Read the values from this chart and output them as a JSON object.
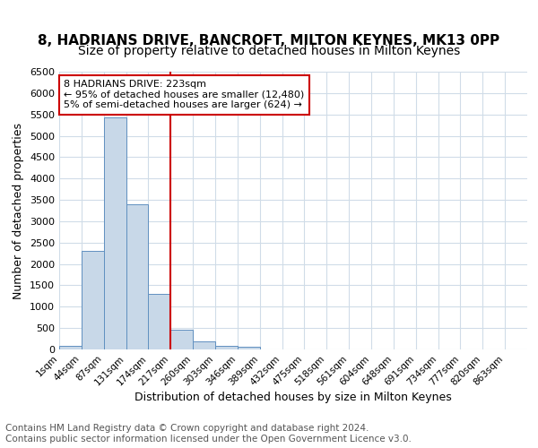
{
  "title1": "8, HADRIANS DRIVE, BANCROFT, MILTON KEYNES, MK13 0PP",
  "title2": "Size of property relative to detached houses in Milton Keynes",
  "xlabel": "Distribution of detached houses by size in Milton Keynes",
  "ylabel": "Number of detached properties",
  "bin_labels": [
    "1sqm",
    "44sqm",
    "87sqm",
    "131sqm",
    "174sqm",
    "217sqm",
    "260sqm",
    "303sqm",
    "346sqm",
    "389sqm",
    "432sqm",
    "475sqm",
    "518sqm",
    "561sqm",
    "604sqm",
    "648sqm",
    "691sqm",
    "734sqm",
    "777sqm",
    "820sqm",
    "863sqm"
  ],
  "bar_heights": [
    75,
    2300,
    5440,
    3400,
    1310,
    470,
    195,
    90,
    55,
    10,
    0,
    0,
    0,
    0,
    0,
    0,
    0,
    0,
    0,
    0,
    0
  ],
  "bar_color": "#c8d8e8",
  "bar_edge_color": "#6090c0",
  "vline_x": 5,
  "vline_color": "#cc0000",
  "annotation_text": "8 HADRIANS DRIVE: 223sqm\n← 95% of detached houses are smaller (12,480)\n5% of semi-detached houses are larger (624) →",
  "annotation_box_color": "#ffffff",
  "annotation_box_edge": "#cc0000",
  "ylim": [
    0,
    6500
  ],
  "yticks": [
    0,
    500,
    1000,
    1500,
    2000,
    2500,
    3000,
    3500,
    4000,
    4500,
    5000,
    5500,
    6000,
    6500
  ],
  "footer_text": "Contains HM Land Registry data © Crown copyright and database right 2024.\nContains public sector information licensed under the Open Government Licence v3.0.",
  "bg_color": "#ffffff",
  "grid_color": "#d0dce8",
  "title1_fontsize": 11,
  "title2_fontsize": 10,
  "xlabel_fontsize": 9,
  "ylabel_fontsize": 9,
  "footer_fontsize": 7.5
}
